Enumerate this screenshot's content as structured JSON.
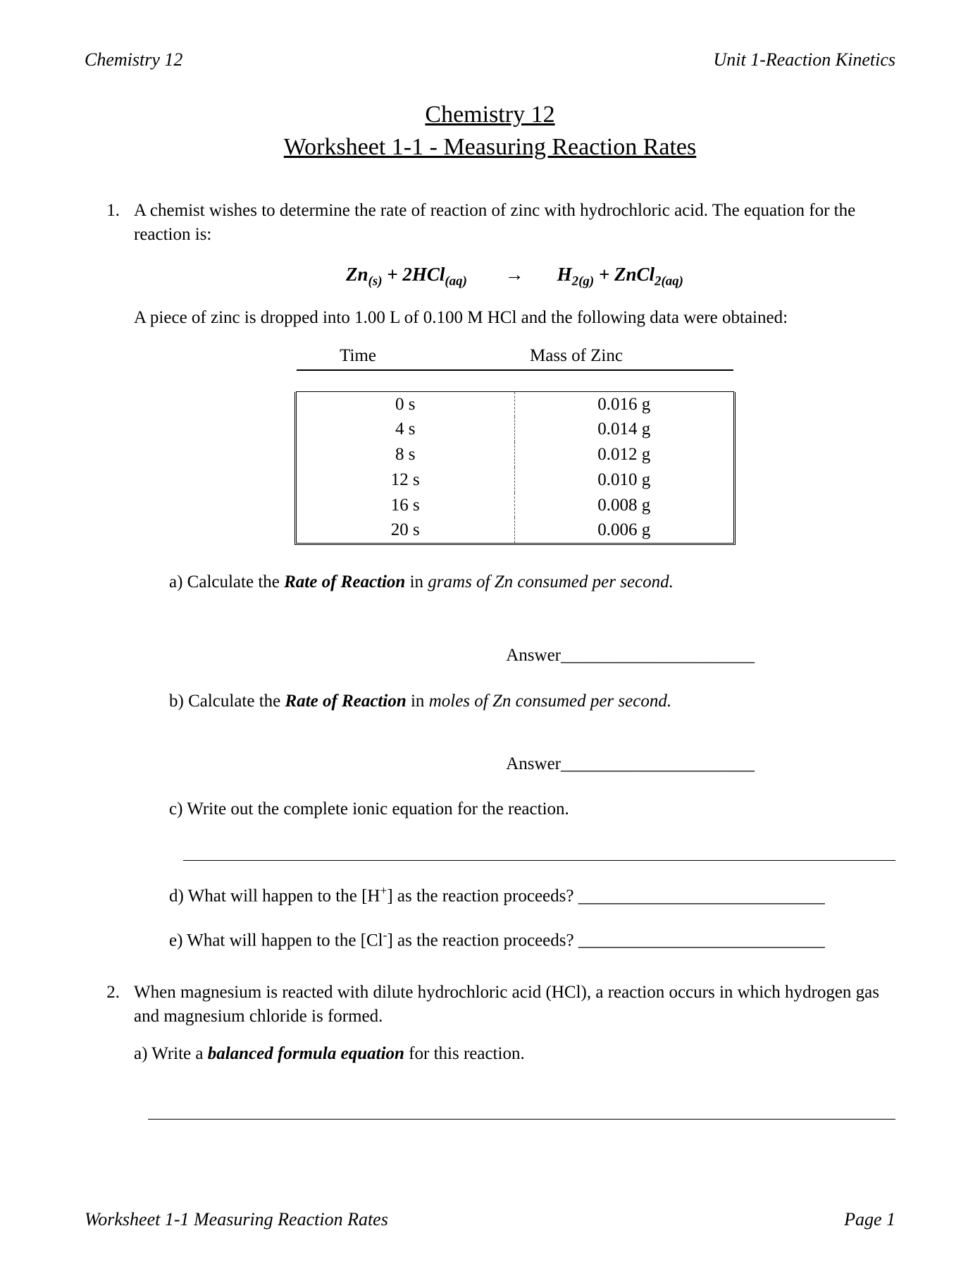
{
  "header": {
    "left": "Chemistry 12",
    "right": "Unit 1-Reaction Kinetics"
  },
  "title": {
    "line1": "Chemistry 12",
    "line2": "Worksheet 1-1  -   Measuring Reaction Rates"
  },
  "q1": {
    "num": "1.",
    "intro": "A chemist wishes to determine the rate of reaction of zinc with hydrochloric acid. The equation for the reaction is:",
    "after_eq": "A piece of zinc is dropped into 1.00 L of 0.100 M HCl and the following data were obtained:",
    "table": {
      "col1": "Time",
      "col2": "Mass of Zinc",
      "rows": [
        {
          "t": "0 s",
          "m": "0.016 g"
        },
        {
          "t": "4 s",
          "m": "0.014 g"
        },
        {
          "t": "8 s",
          "m": "0.012 g"
        },
        {
          "t": "12 s",
          "m": "0.010 g"
        },
        {
          "t": "16 s",
          "m": "0.008 g"
        },
        {
          "t": "20 s",
          "m": "0.006 g"
        }
      ]
    },
    "a_pre": "a) Calculate the ",
    "a_bold": "Rate of Reaction",
    "a_mid": " in ",
    "a_it": "grams of Zn consumed per second.",
    "b_pre": "b) Calculate the ",
    "b_bold": "Rate of Reaction",
    "b_mid": " in ",
    "b_it": "moles of Zn consumed per second.",
    "answer_label": "Answer",
    "c": "c) Write out the complete ionic equation for the reaction.",
    "d_pre": "d) What will happen to the [H",
    "d_sup": "+",
    "d_post": "] as the reaction proceeds?",
    "e_pre": "e) What will happen to the [Cl",
    "e_sup": "-",
    "e_post": "] as the reaction proceeds?"
  },
  "q2": {
    "num": "2.",
    "intro": "When magnesium is reacted with dilute hydrochloric acid (HCl), a reaction occurs in which hydrogen gas and magnesium chloride is formed.",
    "a_pre": "a) Write a ",
    "a_bold": "balanced formula equation",
    "a_post": " for this reaction."
  },
  "footer": {
    "left": "Worksheet 1-1 Measuring Reaction Rates",
    "right": "Page 1"
  },
  "equation": {
    "zn": "Zn",
    "zn_state": "(s)",
    "plus": "  +  ",
    "two_hcl": "2HCl",
    "hcl_state": "(aq)",
    "arrow": "→",
    "h2": "H",
    "h2_sub": "2(g)",
    "plus2": "  + ",
    "zncl": "ZnCl",
    "zncl_sub": "2(aq)"
  }
}
